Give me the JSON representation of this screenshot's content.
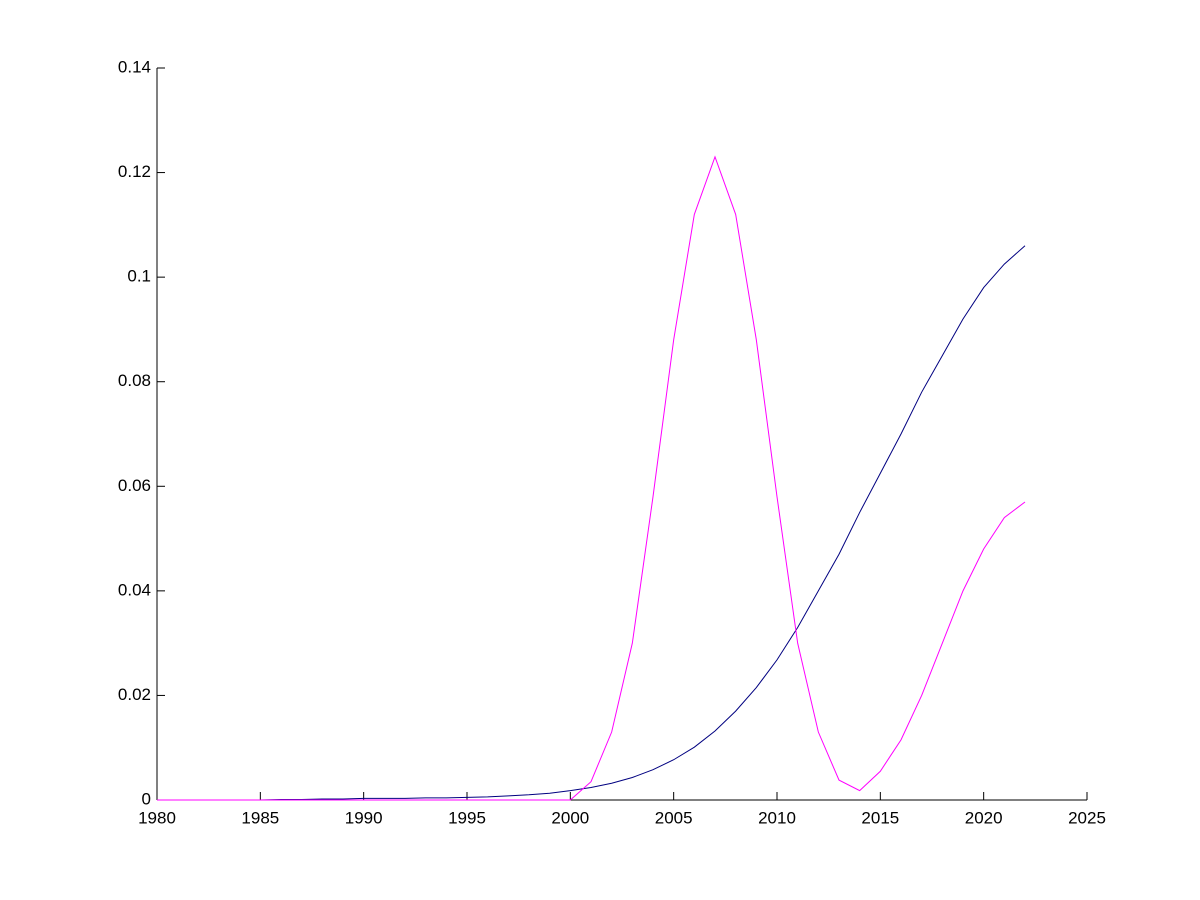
{
  "chart_data": {
    "type": "line",
    "x": [
      1980,
      1981,
      1982,
      1983,
      1984,
      1985,
      1986,
      1987,
      1988,
      1989,
      1990,
      1991,
      1992,
      1993,
      1994,
      1995,
      1996,
      1997,
      1998,
      1999,
      2000,
      2001,
      2002,
      2003,
      2004,
      2005,
      2006,
      2007,
      2008,
      2009,
      2010,
      2011,
      2012,
      2013,
      2014,
      2015,
      2016,
      2017,
      2018,
      2019,
      2020,
      2021,
      2022
    ],
    "series": [
      {
        "color": "#000080",
        "values": [
          0,
          0,
          0,
          0,
          0,
          0,
          0.0001,
          0.0001,
          0.0002,
          0.0002,
          0.0003,
          0.0003,
          0.0003,
          0.0004,
          0.0004,
          0.0005,
          0.0006,
          0.0008,
          0.001,
          0.0013,
          0.0018,
          0.0024,
          0.0032,
          0.0043,
          0.0058,
          0.0077,
          0.0101,
          0.0132,
          0.017,
          0.0215,
          0.0268,
          0.033,
          0.04,
          0.047,
          0.055,
          0.0625,
          0.07,
          0.078,
          0.085,
          0.092,
          0.098,
          0.1025,
          0.106
        ]
      },
      {
        "color": "#ff00ff",
        "values": [
          0,
          0,
          0,
          0,
          0,
          0,
          0,
          0,
          0,
          0,
          0,
          0,
          0,
          0,
          0,
          0,
          0,
          0,
          0,
          0,
          0,
          0.0035,
          0.013,
          0.03,
          0.058,
          0.088,
          0.112,
          0.123,
          0.112,
          0.088,
          0.058,
          0.03,
          0.013,
          0.0038,
          0.0018,
          0.0055,
          0.0115,
          0.02,
          0.03,
          0.04,
          0.048,
          0.054,
          0.057
        ]
      }
    ],
    "xlim": [
      1980,
      2025
    ],
    "xticks": [
      1980,
      1985,
      1990,
      1995,
      2000,
      2005,
      2010,
      2015,
      2020,
      2025
    ],
    "ylim": [
      0,
      0.14
    ],
    "yticks": [
      0,
      0.02,
      0.04,
      0.06,
      0.08,
      0.1,
      0.12,
      0.14
    ]
  }
}
